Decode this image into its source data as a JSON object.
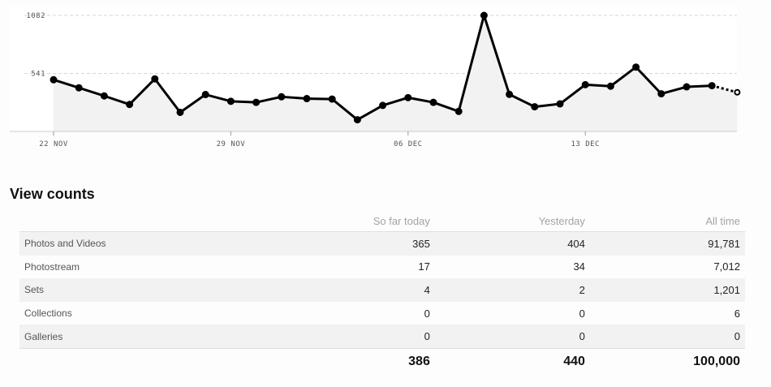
{
  "chart_data": {
    "type": "line",
    "y_ticks": [
      {
        "value": 1082,
        "label": "1082"
      },
      {
        "value": 541,
        "label": "541"
      }
    ],
    "x_ticks": [
      {
        "index": 0,
        "label": "22 NOV"
      },
      {
        "index": 7,
        "label": "29 NOV"
      },
      {
        "index": 14,
        "label": "06 DEC"
      },
      {
        "index": 21,
        "label": "13 DEC"
      }
    ],
    "ylim": [
      0,
      1082
    ],
    "values": [
      482,
      407,
      331,
      252,
      490,
      178,
      344,
      281,
      271,
      323,
      306,
      302,
      109,
      243,
      315,
      271,
      187,
      1082,
      346,
      230,
      257,
      436,
      422,
      600,
      351,
      416,
      427,
      365
    ],
    "last_point_partial": true,
    "grid": "horizontal-dashed",
    "line_color": "#000000",
    "fill_color": "#f2f2f2"
  },
  "view_counts": {
    "title": "View counts",
    "headers": [
      "",
      "So far today",
      "Yesterday",
      "All time"
    ],
    "rows": [
      {
        "label": "Photos and Videos",
        "today": "365",
        "yesterday": "404",
        "all_time": "91,781"
      },
      {
        "label": "Photostream",
        "today": "17",
        "yesterday": "34",
        "all_time": "7,012"
      },
      {
        "label": "Sets",
        "today": "4",
        "yesterday": "2",
        "all_time": "1,201"
      },
      {
        "label": "Collections",
        "today": "0",
        "yesterday": "0",
        "all_time": "6"
      },
      {
        "label": "Galleries",
        "today": "0",
        "yesterday": "0",
        "all_time": "0"
      }
    ],
    "totals": {
      "today": "386",
      "yesterday": "440",
      "all_time": "100,000"
    }
  }
}
